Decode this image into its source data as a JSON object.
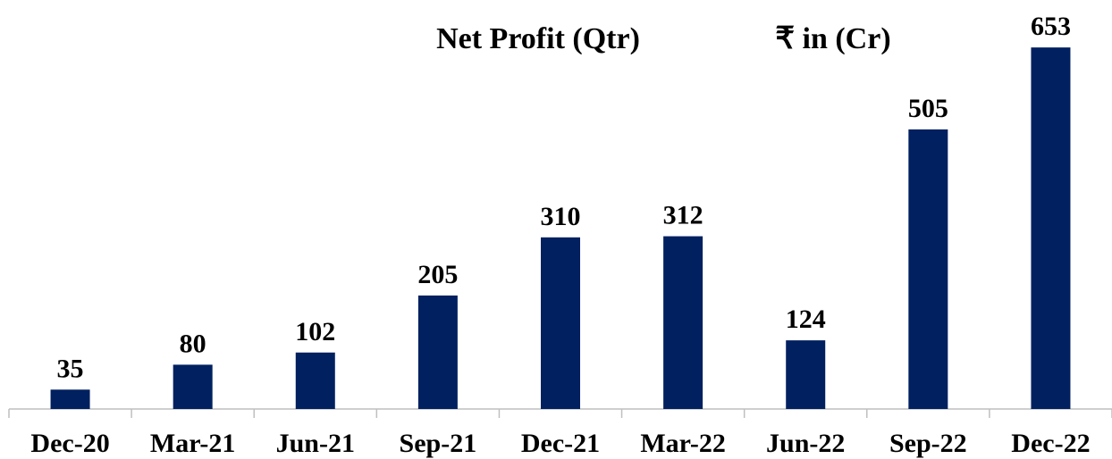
{
  "chart_data": {
    "type": "bar",
    "title": "Net Profit (Qtr)",
    "subtitle": "₹ in (Cr)",
    "categories": [
      "Dec-20",
      "Mar-21",
      "Jun-21",
      "Sep-21",
      "Dec-21",
      "Mar-22",
      "Jun-22",
      "Sep-22",
      "Dec-22"
    ],
    "values": [
      35,
      80,
      102,
      205,
      310,
      312,
      124,
      505,
      653
    ],
    "color": "#002060"
  }
}
